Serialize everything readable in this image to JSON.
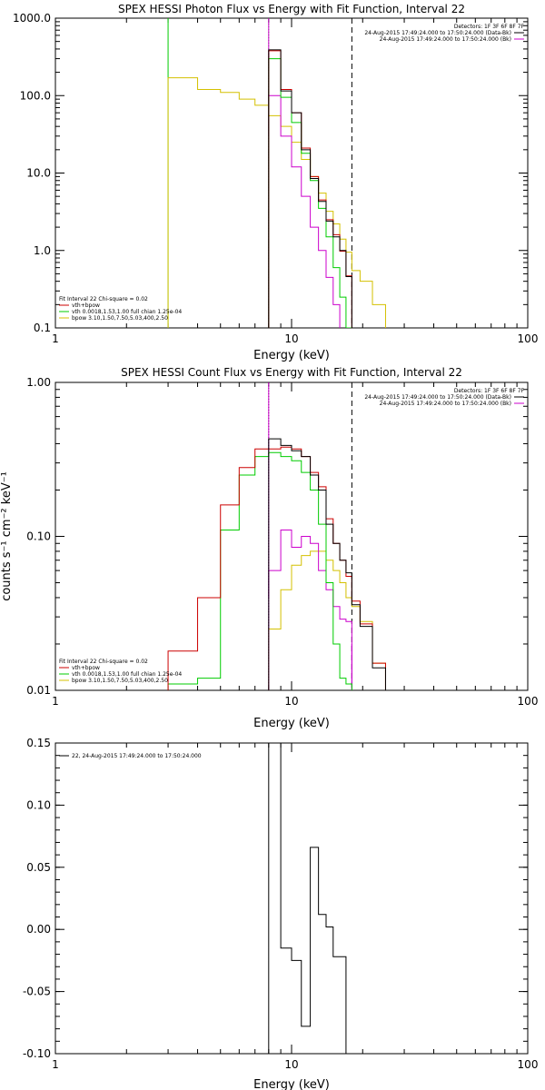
{
  "colors": {
    "total": "#cc0000",
    "vth": "#00cc00",
    "bpow": "#d4c000",
    "data": "#000000",
    "background": "#cc00cc"
  },
  "chart_data": [
    {
      "type": "line",
      "title": "SPEX HESSI Photon Flux vs Energy with Fit Function, Interval 22",
      "xlabel": "Energy (keV)",
      "ylabel": "",
      "xscale": "log",
      "yscale": "log",
      "xlim": [
        1,
        100
      ],
      "ylim": [
        0.1,
        1000
      ],
      "xticks": [
        {
          "v": 1,
          "t": "1"
        },
        {
          "v": 10,
          "t": "10"
        },
        {
          "v": 100,
          "t": "100"
        }
      ],
      "yticks": [
        {
          "v": 0.1,
          "t": "0.1"
        },
        {
          "v": 1,
          "t": "1.0"
        },
        {
          "v": 10,
          "t": "10.0"
        },
        {
          "v": 100,
          "t": "100.0"
        },
        {
          "v": 1000,
          "t": "1000.0"
        }
      ],
      "vlines": [
        {
          "x": 3,
          "color": "vth",
          "style": "solid"
        },
        {
          "x": 8,
          "color": "vth",
          "style": "dotted"
        },
        {
          "x": 8,
          "color": "background",
          "style": "solid",
          "from": 30
        },
        {
          "x": 18,
          "color": "data",
          "style": "dashed"
        }
      ],
      "edges": [
        3,
        4,
        5,
        6,
        7,
        8,
        9,
        10,
        11,
        12,
        13,
        14,
        15,
        16,
        17,
        18,
        19.5,
        22,
        25
      ],
      "series": [
        {
          "color": "bpow",
          "values": [
            170,
            120,
            110,
            90,
            75,
            55,
            40,
            25,
            15,
            9,
            5.5,
            3.2,
            2.2,
            1.4,
            0.95,
            0.55,
            0.4,
            0.2
          ]
        },
        {
          "color": "background",
          "values": [
            null,
            null,
            null,
            null,
            null,
            100,
            30,
            12,
            5,
            2,
            1,
            0.45,
            0.2,
            null,
            null,
            null,
            null,
            null
          ]
        },
        {
          "color": "vth",
          "values": [
            null,
            null,
            null,
            null,
            null,
            300,
            95,
            45,
            18,
            8,
            3.5,
            1.5,
            0.6,
            0.25,
            0.1,
            null,
            null,
            null
          ]
        },
        {
          "color": "total",
          "values": [
            null,
            null,
            null,
            null,
            null,
            380,
            120,
            60,
            21,
            9,
            4.5,
            2.5,
            1.6,
            0.98,
            0.47,
            null,
            null,
            null
          ]
        },
        {
          "color": "data",
          "values": [
            null,
            null,
            null,
            null,
            null,
            390,
            115,
            60,
            20,
            8.5,
            4.3,
            2.4,
            1.5,
            1.0,
            0.46,
            null,
            null,
            null
          ]
        }
      ],
      "legend_left": [
        {
          "text": "Fit Interval 22   Chi-square = 0.02",
          "color": "data",
          "line": false
        },
        {
          "text": "vth+bpow",
          "color": "total",
          "line": true
        },
        {
          "text": "vth 0.0018,1.53,1.00  full chian 1.25e-04",
          "color": "vth",
          "line": true
        },
        {
          "text": "bpow 3.10,1.50,7.50,5.03,400,2.50",
          "color": "bpow",
          "line": true
        }
      ],
      "legend_right": [
        {
          "text": "Detectors: 1F 3F 6F 8F 7F",
          "color": "data",
          "line": false
        },
        {
          "text": "24-Aug-2015 17:49:24.000 to 17:50:24.000 (Data-Bk)",
          "color": "data",
          "line": true
        },
        {
          "text": "24-Aug-2015 17:49:24.000 to 17:50:24.000 (Bk)",
          "color": "background",
          "line": true
        }
      ]
    },
    {
      "type": "line",
      "title": "SPEX HESSI Count Flux vs Energy with Fit Function, Interval 22",
      "xlabel": "Energy (keV)",
      "ylabel": "counts s⁻¹ cm⁻² keV⁻¹",
      "xscale": "log",
      "yscale": "log",
      "xlim": [
        1,
        100
      ],
      "ylim": [
        0.01,
        1
      ],
      "xticks": [
        {
          "v": 1,
          "t": "1"
        },
        {
          "v": 10,
          "t": "10"
        },
        {
          "v": 100,
          "t": "100"
        }
      ],
      "yticks": [
        {
          "v": 0.01,
          "t": "0.01"
        },
        {
          "v": 0.1,
          "t": "0.10"
        },
        {
          "v": 1,
          "t": "1.00"
        }
      ],
      "vlines": [
        {
          "x": 8,
          "color": "data",
          "style": "dotted"
        },
        {
          "x": 8,
          "color": "background",
          "style": "solid",
          "from": 0.04
        },
        {
          "x": 18,
          "color": "data",
          "style": "dashed"
        },
        {
          "x": 18,
          "color": "background",
          "style": "solid",
          "to": 0.02
        }
      ],
      "edges": [
        3,
        4,
        5,
        6,
        7,
        8,
        9,
        10,
        11,
        12,
        13,
        14,
        15,
        16,
        17,
        18,
        19.5,
        22,
        25
      ],
      "series": [
        {
          "color": "bpow",
          "values": [
            null,
            null,
            null,
            null,
            null,
            0.025,
            0.045,
            0.065,
            0.075,
            0.08,
            0.08,
            0.07,
            0.06,
            0.05,
            0.04,
            0.035,
            0.028,
            0.015
          ]
        },
        {
          "color": "background",
          "values": [
            null,
            null,
            null,
            null,
            null,
            0.06,
            0.11,
            0.085,
            0.1,
            0.09,
            0.06,
            0.045,
            0.035,
            0.029,
            0.028,
            null,
            null,
            null
          ]
        },
        {
          "color": "vth",
          "values": [
            0.011,
            0.012,
            0.11,
            0.25,
            0.33,
            0.35,
            0.33,
            0.31,
            0.26,
            0.2,
            0.12,
            0.05,
            0.02,
            0.012,
            0.011,
            null,
            null,
            null
          ]
        },
        {
          "color": "total",
          "values": [
            0.018,
            0.04,
            0.16,
            0.28,
            0.37,
            0.37,
            0.38,
            0.37,
            0.33,
            0.26,
            0.21,
            0.13,
            0.09,
            0.07,
            0.055,
            0.038,
            0.027,
            0.015
          ]
        },
        {
          "color": "data",
          "values": [
            null,
            null,
            null,
            null,
            null,
            0.43,
            0.39,
            0.36,
            0.33,
            0.25,
            0.2,
            0.12,
            0.09,
            0.07,
            0.058,
            0.036,
            0.026,
            0.014
          ]
        }
      ],
      "legend_left": [
        {
          "text": "Fit Interval 22   Chi-square = 0.02",
          "color": "data",
          "line": false
        },
        {
          "text": "vth+bpow",
          "color": "total",
          "line": true
        },
        {
          "text": "vth 0.0018,1.53,1.00  full chian 1.25e-04",
          "color": "vth",
          "line": true
        },
        {
          "text": "bpow 3.10,1.50,7.50,5.03,400,2.50",
          "color": "bpow",
          "line": true
        }
      ],
      "legend_right": [
        {
          "text": "Detectors: 1F 3F 6F 8F 7F",
          "color": "data",
          "line": false
        },
        {
          "text": "24-Aug-2015 17:49:24.000 to 17:50:24.000 (Data-Bk)",
          "color": "data",
          "line": true
        },
        {
          "text": "24-Aug-2015 17:49:24.000 to 17:50:24.000 (Bk)",
          "color": "background",
          "line": true
        }
      ]
    },
    {
      "type": "line",
      "title": "",
      "xlabel": "Energy (keV)",
      "ylabel": "",
      "xscale": "log",
      "yscale": "linear",
      "xlim": [
        1,
        100
      ],
      "ylim": [
        -0.1,
        0.15
      ],
      "xticks": [
        {
          "v": 1,
          "t": "1"
        },
        {
          "v": 10,
          "t": "10"
        },
        {
          "v": 100,
          "t": "100"
        }
      ],
      "yticks": [
        {
          "v": -0.1,
          "t": "-0.10"
        },
        {
          "v": -0.05,
          "t": "-0.05"
        },
        {
          "v": 0,
          "t": "0.00"
        },
        {
          "v": 0.05,
          "t": "0.05"
        },
        {
          "v": 0.1,
          "t": "0.10"
        },
        {
          "v": 0.15,
          "t": "0.15"
        }
      ],
      "vlines": [],
      "edges": [
        8,
        9,
        10,
        11,
        12,
        13,
        14,
        15,
        16,
        17,
        18
      ],
      "series": [
        {
          "color": "data",
          "values": [
            0.15,
            -0.015,
            -0.025,
            -0.078,
            0.066,
            0.012,
            0.002,
            -0.022,
            -0.022,
            -0.1
          ]
        }
      ],
      "legend_left": [
        {
          "text": "22, 24-Aug-2015 17:49:24.000 to 17:50:24.000",
          "color": "data",
          "line": true
        }
      ],
      "legend_right": []
    }
  ]
}
